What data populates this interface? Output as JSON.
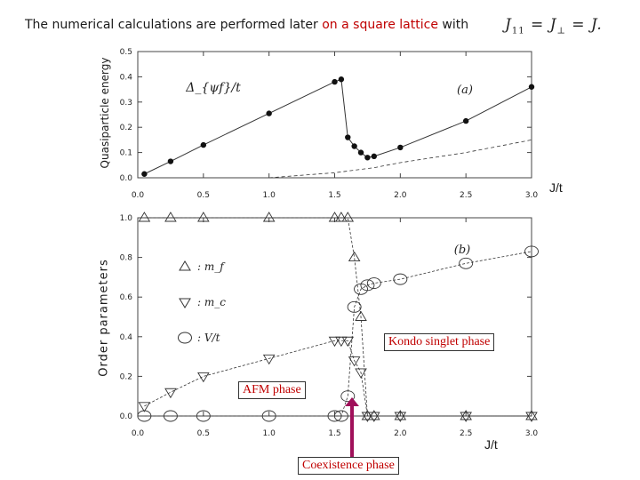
{
  "slide": {
    "title_prefix": "The numerical calculations are performed later ",
    "title_highlight": "on a square lattice",
    "title_suffix": " with",
    "equation_j": "J",
    "equation_sub1": "11",
    "equation_eq": "=",
    "equation_j2": "J",
    "equation_sub2": "⊥",
    "equation_eq2": "=",
    "equation_j3": "J.",
    "ylabel_a": "Quasiparticle energy",
    "ylabel_b": "Order  parameters",
    "xlabel_a": "J/t",
    "xlabel_b": "J/t",
    "kondo_label": "Kondo singlet phase",
    "afm_label": "AFM phase",
    "coexistence_label": "Coexistence phase"
  },
  "colors": {
    "annotation_red": "#c00000",
    "arrow": "#a0105a",
    "ink": "#1a1a1a"
  },
  "chart_data": [
    {
      "type": "line",
      "panel_label": "(a)",
      "series_label": "Δ_{ψf}/t",
      "xlim": [
        0.0,
        3.0
      ],
      "ylim": [
        0.0,
        0.5
      ],
      "xticks": [
        "0.0",
        "0.5",
        "1.0",
        "1.5",
        "2.0",
        "2.5",
        "3.0"
      ],
      "yticks": [
        "0.0",
        "0.1",
        "0.2",
        "0.3",
        "0.4",
        "0.5"
      ],
      "series": [
        {
          "style": "solid-filled-dots",
          "x": [
            0.05,
            0.25,
            0.5,
            1.0,
            1.5,
            1.55,
            1.6,
            1.65,
            1.7,
            1.75,
            1.8,
            2.0,
            2.5,
            3.0
          ],
          "y": [
            0.015,
            0.065,
            0.13,
            0.255,
            0.38,
            0.39,
            0.16,
            0.125,
            0.1,
            0.08,
            0.085,
            0.12,
            0.225,
            0.36
          ]
        },
        {
          "style": "dashed",
          "x": [
            1.0,
            1.5,
            1.8,
            2.0,
            2.5,
            3.0
          ],
          "y": [
            0.0,
            0.02,
            0.04,
            0.06,
            0.1,
            0.15
          ]
        }
      ]
    },
    {
      "type": "line",
      "panel_label": "(b)",
      "xlim": [
        0.0,
        3.0
      ],
      "ylim": [
        0.0,
        1.0
      ],
      "xticks": [
        "0.0",
        "0.5",
        "1.0",
        "1.5",
        "2.0",
        "2.5",
        "3.0"
      ],
      "yticks": [
        "0.0",
        "0.2",
        "0.4",
        "0.6",
        "0.8",
        "1.0"
      ],
      "legend": [
        {
          "marker": "triangle-up",
          "label": ": m_f"
        },
        {
          "marker": "triangle-down",
          "label": ": m_c"
        },
        {
          "marker": "circle",
          "label": ": V/t"
        }
      ],
      "series": [
        {
          "name": "m_f",
          "marker": "triangle-up",
          "x": [
            0.05,
            0.25,
            0.5,
            1.0,
            1.5,
            1.55,
            1.6,
            1.65,
            1.7,
            1.75,
            1.8,
            2.0,
            2.5,
            3.0
          ],
          "y": [
            1.0,
            1.0,
            1.0,
            1.0,
            1.0,
            1.0,
            1.0,
            0.8,
            0.5,
            0.0,
            0.0,
            0.0,
            0.0,
            0.0
          ]
        },
        {
          "name": "m_c",
          "marker": "triangle-down",
          "x": [
            0.05,
            0.25,
            0.5,
            1.0,
            1.5,
            1.55,
            1.6,
            1.65,
            1.7,
            1.75,
            1.8,
            2.0,
            2.5,
            3.0
          ],
          "y": [
            0.05,
            0.12,
            0.2,
            0.29,
            0.38,
            0.38,
            0.38,
            0.28,
            0.22,
            0.0,
            0.0,
            0.0,
            0.0,
            0.0
          ]
        },
        {
          "name": "V/t",
          "marker": "circle",
          "x": [
            0.05,
            0.25,
            0.5,
            1.0,
            1.5,
            1.55,
            1.6,
            1.65,
            1.7,
            1.75,
            1.8,
            2.0,
            2.5,
            3.0
          ],
          "y": [
            0.0,
            0.0,
            0.0,
            0.0,
            0.0,
            0.0,
            0.1,
            0.55,
            0.64,
            0.66,
            0.67,
            0.69,
            0.77,
            0.83
          ]
        }
      ]
    }
  ]
}
